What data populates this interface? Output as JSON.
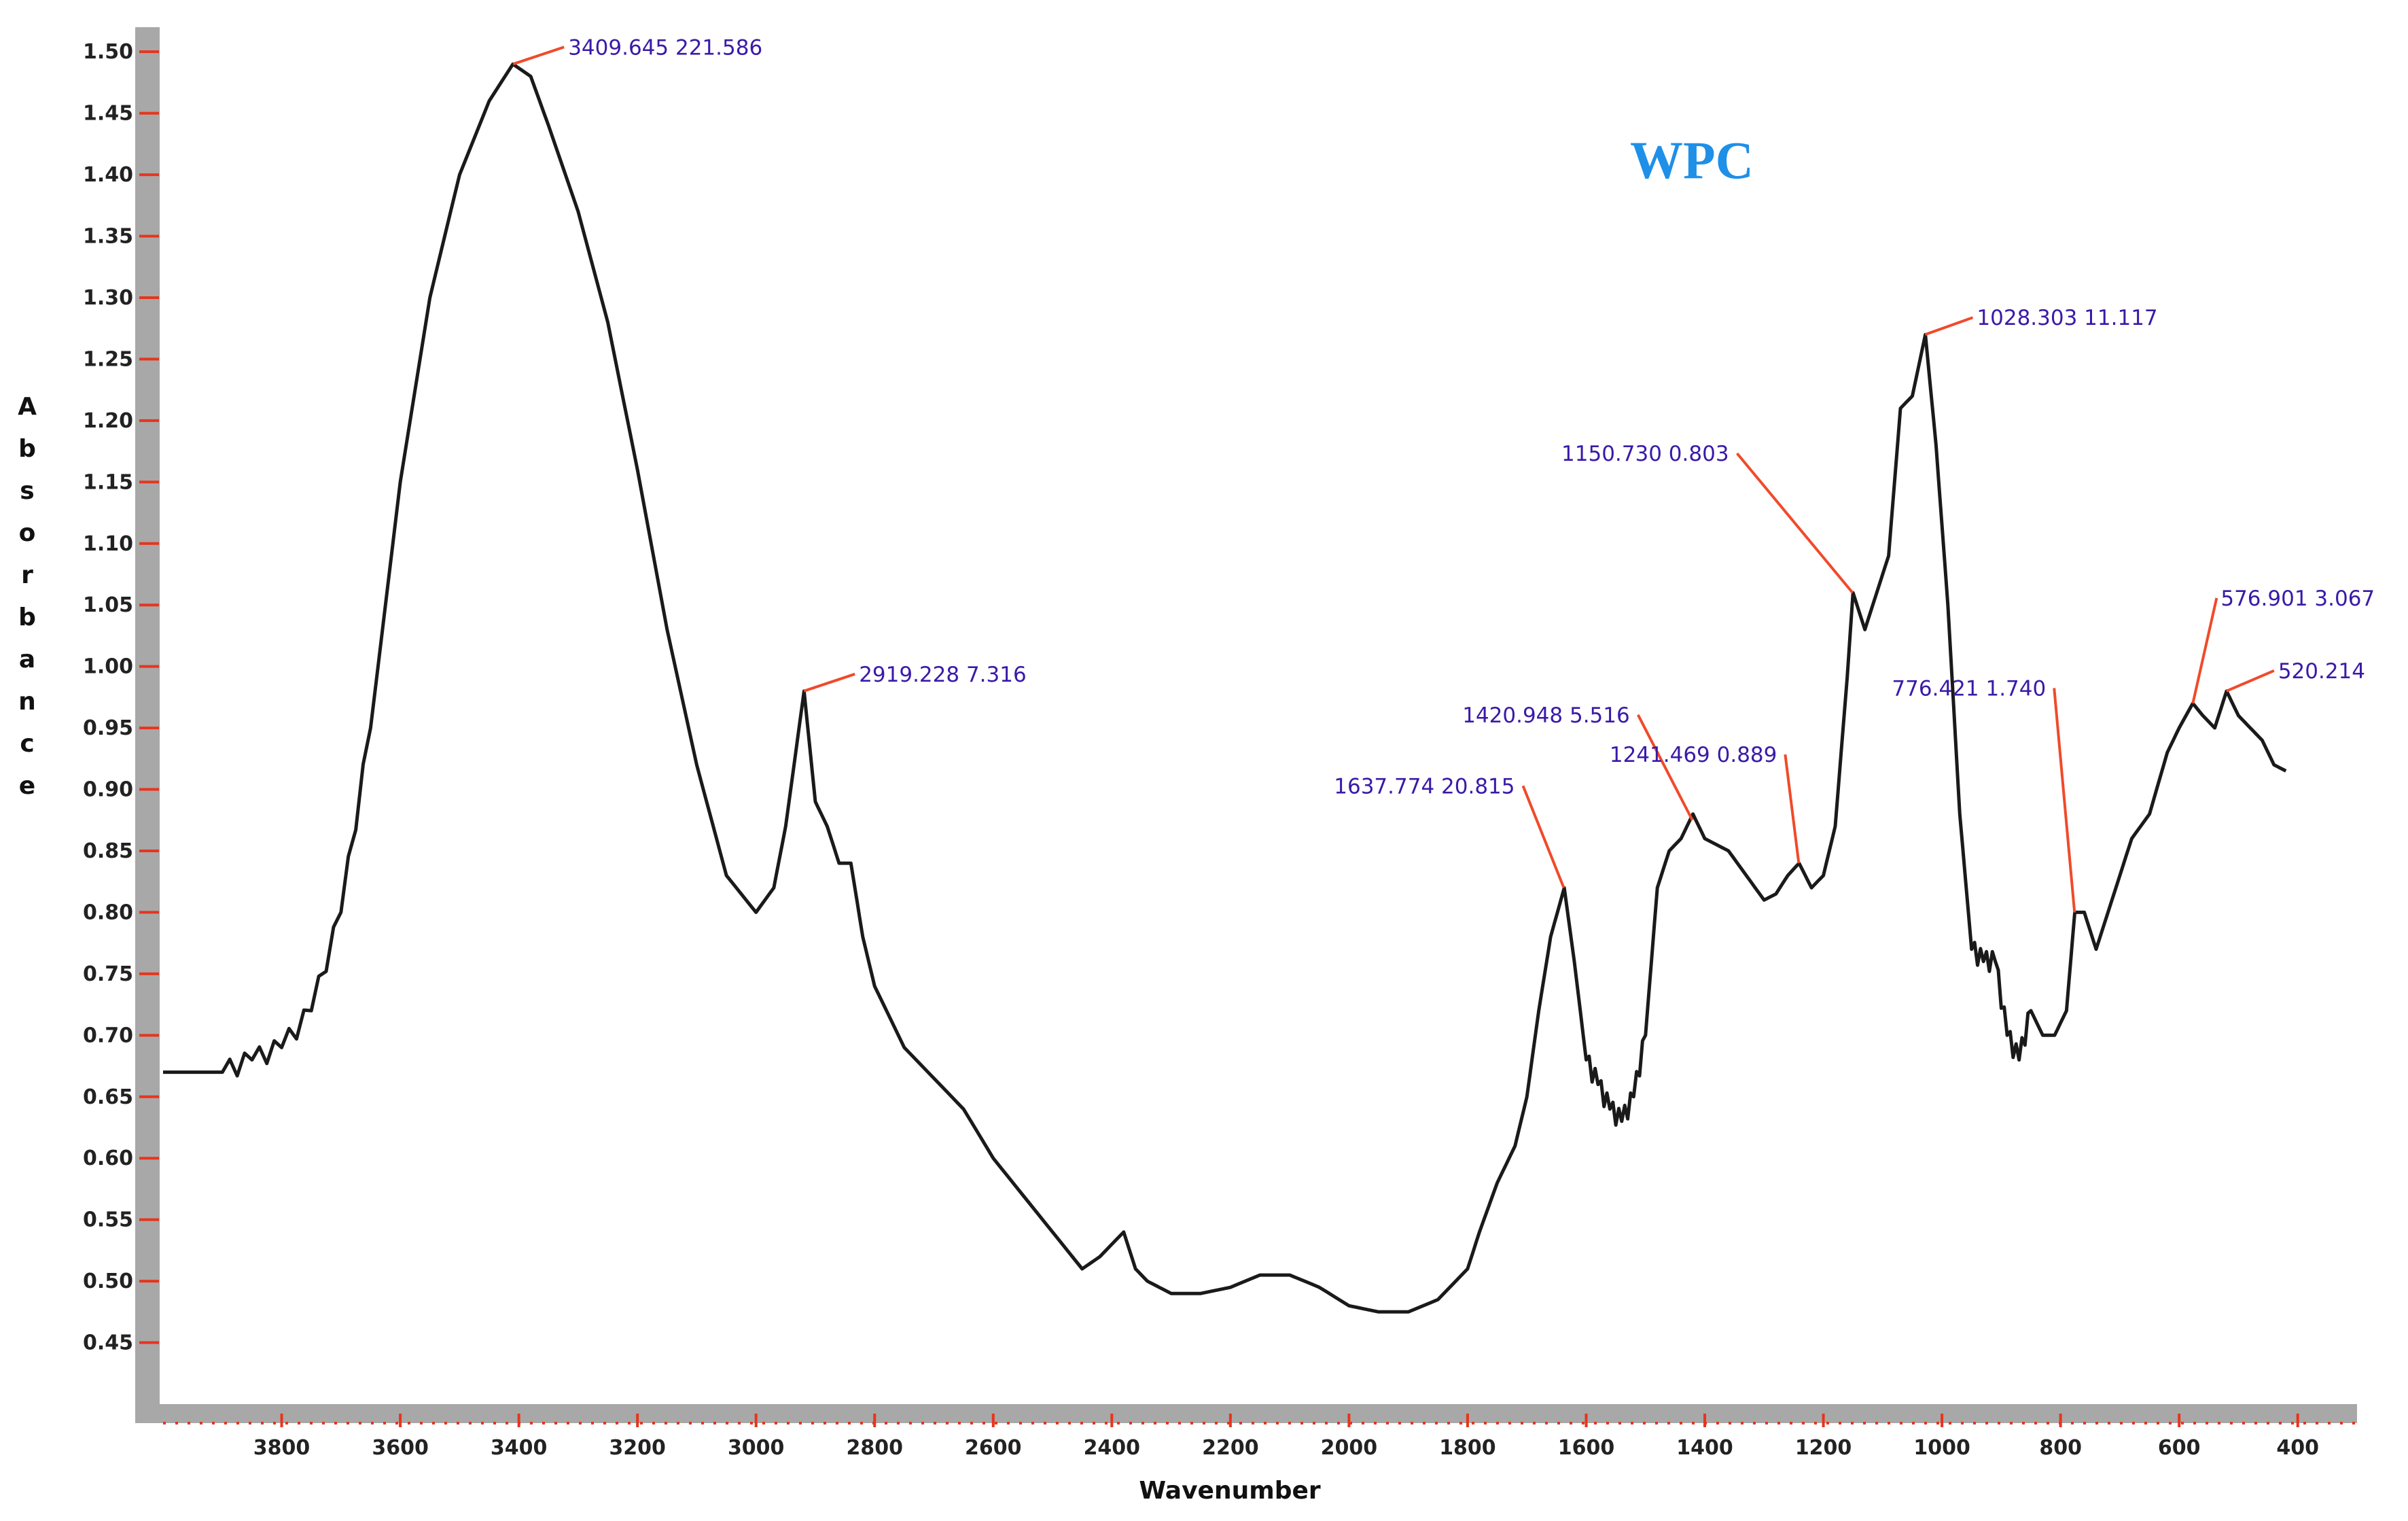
{
  "chart_data": {
    "type": "line",
    "title": "WPC",
    "xlabel": "Wavenumber",
    "ylabel": "Absorbance",
    "xlim": [
      4000,
      300
    ],
    "ylim": [
      0.4,
      1.52
    ],
    "x_ticks": [
      3800,
      3600,
      3400,
      3200,
      3000,
      2800,
      2600,
      2400,
      2200,
      2000,
      1800,
      1600,
      1400,
      1200,
      1000,
      800,
      600,
      400
    ],
    "y_ticks": [
      "1.50",
      "1.45",
      "1.40",
      "1.35",
      "1.30",
      "1.25",
      "1.20",
      "1.15",
      "1.10",
      "1.05",
      "1.00",
      "0.95",
      "0.90",
      "0.85",
      "0.80",
      "0.75",
      "0.70",
      "0.65",
      "0.60",
      "0.55",
      "0.50",
      "0.45"
    ],
    "grid": false,
    "legend": "none",
    "colors": {
      "line": "#1a1a1a",
      "tick": "#e8341c",
      "annotation_text": "#3a1aa8",
      "annotation_leader": "#f04a2a",
      "title": "#1e90e8",
      "axis_frame": "#a8a8a8"
    },
    "series": [
      {
        "x": [
          4000,
          3900,
          3850,
          3800,
          3750,
          3700,
          3650,
          3600,
          3550,
          3500,
          3450,
          3410,
          3380,
          3350,
          3300,
          3250,
          3200,
          3150,
          3100,
          3050,
          3000,
          2970,
          2950,
          2919,
          2900,
          2880,
          2860,
          2840,
          2820,
          2800,
          2750,
          2700,
          2650,
          2600,
          2550,
          2500,
          2450,
          2420,
          2380,
          2360,
          2340,
          2320,
          2300,
          2250,
          2200,
          2150,
          2100,
          2050,
          2000,
          1950,
          1900,
          1850,
          1800,
          1780,
          1750,
          1720,
          1700,
          1680,
          1660,
          1637,
          1620,
          1600,
          1580,
          1560,
          1540,
          1520,
          1500,
          1480,
          1460,
          1440,
          1420,
          1400,
          1380,
          1360,
          1330,
          1300,
          1280,
          1260,
          1241,
          1220,
          1200,
          1180,
          1160,
          1150,
          1130,
          1110,
          1090,
          1070,
          1050,
          1028,
          1010,
          990,
          970,
          950,
          930,
          910,
          890,
          870,
          850,
          830,
          810,
          790,
          776,
          760,
          740,
          720,
          700,
          680,
          650,
          620,
          600,
          577,
          560,
          540,
          520,
          500,
          480,
          460,
          440,
          420
        ],
        "y": [
          0.67,
          0.67,
          0.68,
          0.69,
          0.72,
          0.8,
          0.95,
          1.15,
          1.3,
          1.4,
          1.46,
          1.49,
          1.48,
          1.44,
          1.37,
          1.28,
          1.16,
          1.03,
          0.92,
          0.83,
          0.8,
          0.82,
          0.87,
          0.98,
          0.89,
          0.87,
          0.84,
          0.84,
          0.78,
          0.74,
          0.69,
          0.665,
          0.64,
          0.6,
          0.57,
          0.54,
          0.51,
          0.52,
          0.54,
          0.51,
          0.5,
          0.495,
          0.49,
          0.49,
          0.495,
          0.505,
          0.505,
          0.495,
          0.48,
          0.475,
          0.475,
          0.485,
          0.51,
          0.54,
          0.58,
          0.61,
          0.65,
          0.72,
          0.78,
          0.82,
          0.76,
          0.68,
          0.66,
          0.64,
          0.63,
          0.65,
          0.7,
          0.82,
          0.85,
          0.86,
          0.88,
          0.86,
          0.855,
          0.85,
          0.83,
          0.81,
          0.815,
          0.83,
          0.84,
          0.82,
          0.83,
          0.87,
          0.99,
          1.06,
          1.03,
          1.06,
          1.09,
          1.21,
          1.22,
          1.27,
          1.18,
          1.05,
          0.88,
          0.77,
          0.76,
          0.76,
          0.7,
          0.68,
          0.72,
          0.7,
          0.7,
          0.72,
          0.8,
          0.8,
          0.77,
          0.8,
          0.83,
          0.86,
          0.88,
          0.93,
          0.95,
          0.97,
          0.96,
          0.95,
          0.98,
          0.96,
          0.95,
          0.94,
          0.92,
          0.915
        ]
      }
    ],
    "annotations": [
      {
        "x": 3409.645,
        "y": 1.49,
        "label": "3409.645  221.586"
      },
      {
        "x": 2919.228,
        "y": 0.98,
        "label": "2919.228  7.316"
      },
      {
        "x": 1637.774,
        "y": 0.82,
        "label": "1637.774  20.815"
      },
      {
        "x": 1420.948,
        "y": 0.875,
        "label": "1420.948  5.516"
      },
      {
        "x": 1241.469,
        "y": 0.84,
        "label": "1241.469  0.889"
      },
      {
        "x": 1150.73,
        "y": 1.06,
        "label": "1150.730  0.803"
      },
      {
        "x": 1028.303,
        "y": 1.27,
        "label": "1028.303  11.117"
      },
      {
        "x": 776.421,
        "y": 0.8,
        "label": "776.421  1.740"
      },
      {
        "x": 576.901,
        "y": 0.97,
        "label": "576.901  3.067"
      },
      {
        "x": 520.214,
        "y": 0.98,
        "label": "520.214"
      }
    ],
    "ylabel_letters": [
      "A",
      "b",
      "s",
      "o",
      "r",
      "b",
      "a",
      "n",
      "c",
      "e"
    ]
  }
}
